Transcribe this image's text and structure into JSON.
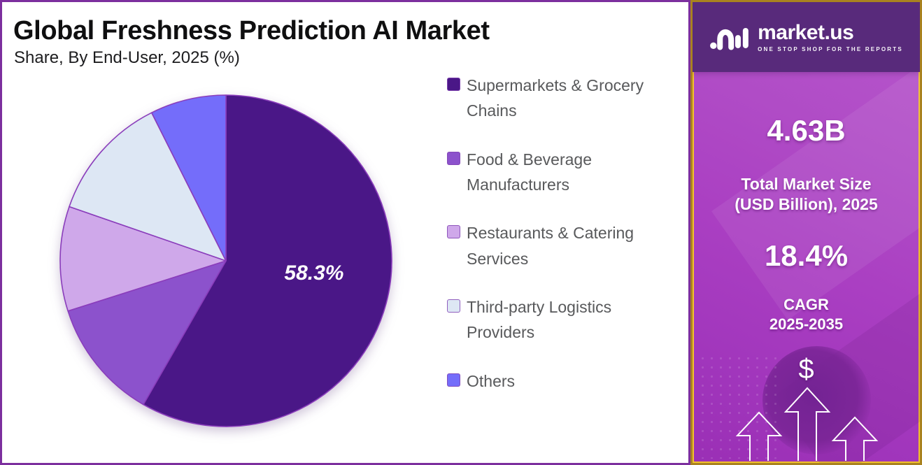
{
  "header": {
    "title": "Global Freshness Prediction AI Market",
    "subtitle": "Share, By End-User, 2025 (%)"
  },
  "chart_data": {
    "type": "pie",
    "title": "Global Freshness Prediction AI Market",
    "subtitle": "Share, By End-User, 2025 (%)",
    "unit": "percent",
    "direction": "clockwise",
    "start_angle_deg": 0,
    "legend_position": "right",
    "slice_stroke_color": "#8a3dbb",
    "slices": [
      {
        "name": "Supermarkets & Grocery Chains",
        "value": 58.3,
        "color": "#4a1787",
        "label": "58.3%"
      },
      {
        "name": "Food & Beverage Manufacturers",
        "value": 11.8,
        "color": "#8c52cc"
      },
      {
        "name": "Restaurants & Catering Services",
        "value": 10.2,
        "color": "#cfa8ea"
      },
      {
        "name": "Third-party Logistics Providers",
        "value": 12.3,
        "color": "#dde7f4"
      },
      {
        "name": "Others",
        "value": 7.4,
        "color": "#746dfa"
      }
    ]
  },
  "sidebar": {
    "brand": "market.us",
    "tagline": "ONE STOP SHOP FOR THE REPORTS",
    "market_size_value": "4.63B",
    "market_size_label": [
      "Total Market Size",
      "(USD Billion), 2025"
    ],
    "cagr_value": "18.4%",
    "cagr_label": [
      "CAGR",
      "2025-2035"
    ],
    "dollar_symbol": "$"
  },
  "colors": {
    "frame_purple": "#7c2f9e",
    "sidebar_border_gold": "#a9821f",
    "sidebar_border_gold_bright": "#f2c12e",
    "sidebar_header_purple": "#582a7b",
    "sidebar_magenta": "#ad43c4",
    "legend_text": "#58595b",
    "title_color": "#0f0f10"
  }
}
